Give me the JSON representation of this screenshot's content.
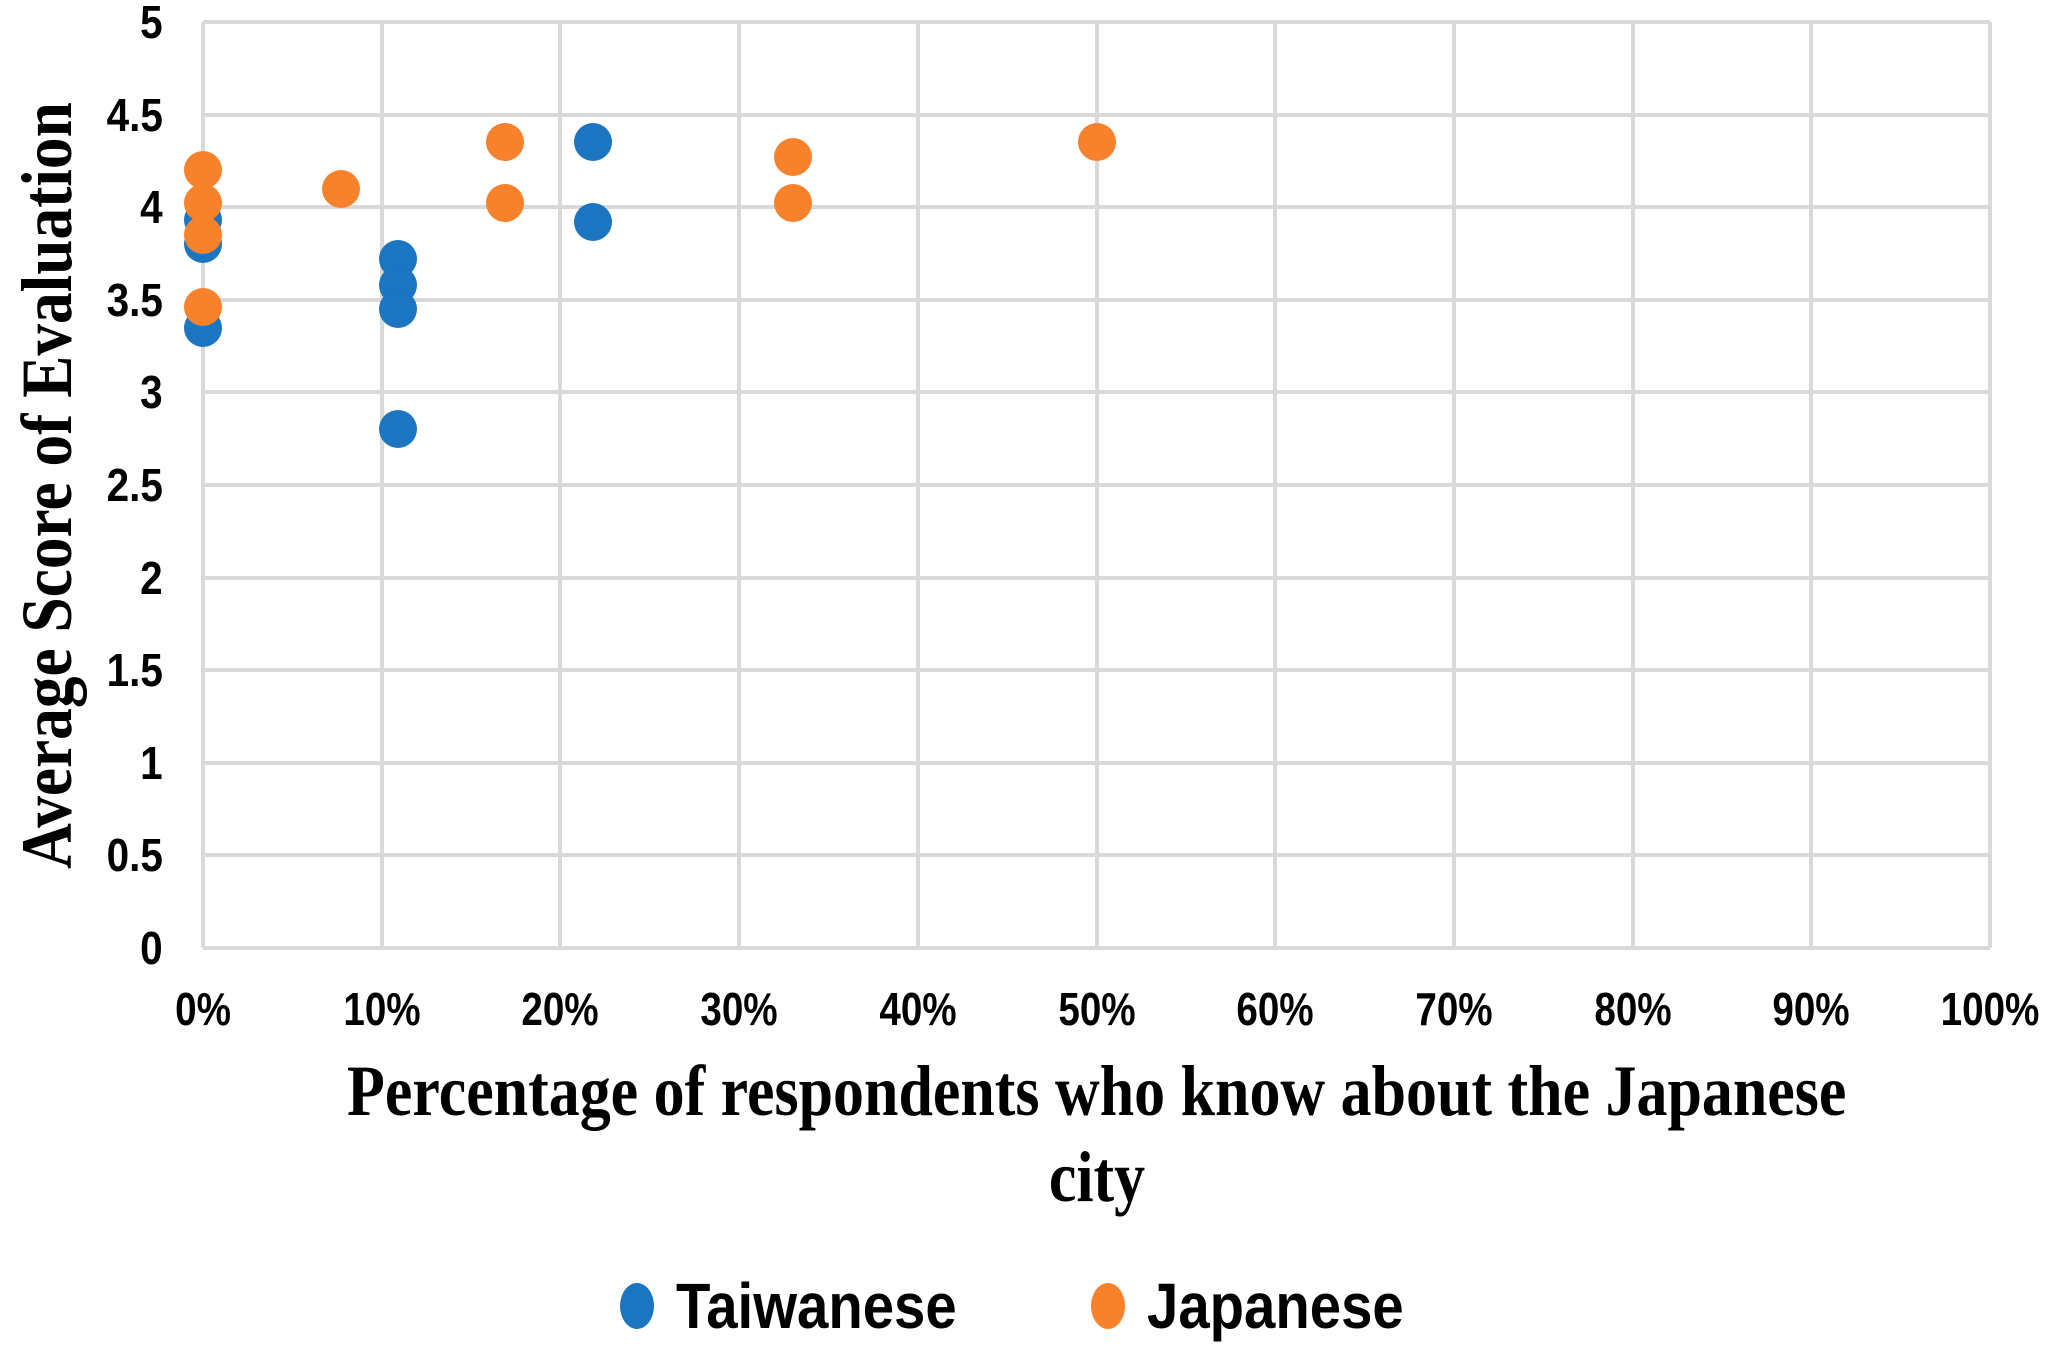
{
  "chart_data": {
    "type": "scatter",
    "title": "",
    "xlabel": "Percentage of respondents who know about the Japanese city",
    "xlabel_line1": "Percentage of respondents who know about the Japanese",
    "xlabel_line2": "city",
    "ylabel": "Average Score of Evaluation",
    "xlim": [
      0,
      100
    ],
    "ylim": [
      0,
      5
    ],
    "x_tick_unit": "percent",
    "x_ticks": [
      "0%",
      "10%",
      "20%",
      "30%",
      "40%",
      "50%",
      "60%",
      "70%",
      "80%",
      "90%",
      "100%"
    ],
    "y_ticks": [
      "0",
      "0.5",
      "1",
      "1.5",
      "2",
      "2.5",
      "3",
      "3.5",
      "4",
      "4.5",
      "5"
    ],
    "grid": true,
    "gridline_color": "#D9D9D9",
    "background_color": "#FFFFFF",
    "text_color": "#000000",
    "legend_position": "bottom",
    "series": [
      {
        "name": "Taiwanese",
        "color": "#1B75C0",
        "points": [
          [
            0,
            3.93
          ],
          [
            0,
            3.8
          ],
          [
            0,
            3.35
          ],
          [
            10.9,
            3.72
          ],
          [
            10.9,
            3.58
          ],
          [
            10.9,
            3.45
          ],
          [
            10.9,
            2.8
          ],
          [
            21.8,
            4.35
          ],
          [
            21.8,
            3.92
          ]
        ]
      },
      {
        "name": "Japanese",
        "color": "#F8812B",
        "points": [
          [
            0,
            4.2
          ],
          [
            0,
            4.02
          ],
          [
            0,
            3.85
          ],
          [
            0,
            3.46
          ],
          [
            7.7,
            4.1
          ],
          [
            16.9,
            4.35
          ],
          [
            16.9,
            4.02
          ],
          [
            33,
            4.27
          ],
          [
            33,
            4.02
          ],
          [
            50,
            4.35
          ]
        ]
      }
    ]
  }
}
